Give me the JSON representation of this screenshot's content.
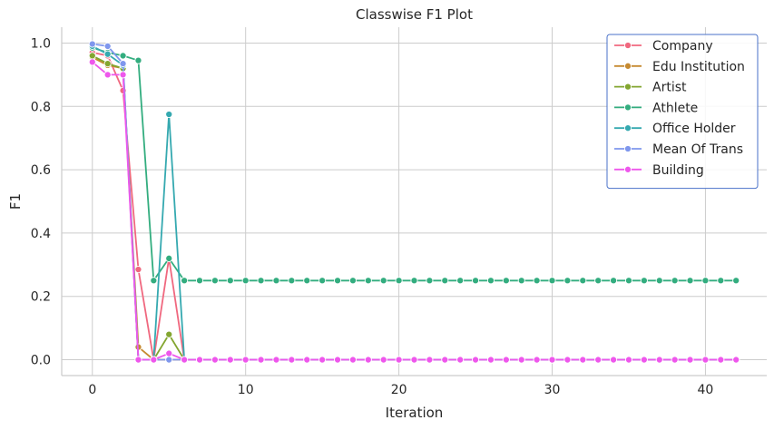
{
  "chart_data": {
    "type": "line",
    "title": "Classwise F1 Plot",
    "xlabel": "Iteration",
    "ylabel": "F1",
    "xlim": [
      -2,
      44
    ],
    "ylim": [
      -0.05,
      1.05
    ],
    "xticks": [
      0,
      10,
      20,
      30,
      40
    ],
    "yticks": [
      0.0,
      0.2,
      0.4,
      0.6,
      0.8,
      1.0
    ],
    "grid": true,
    "legend_position": "top-right",
    "x": [
      0,
      1,
      2,
      3,
      4,
      5,
      6,
      7,
      8,
      9,
      10,
      11,
      12,
      13,
      14,
      15,
      16,
      17,
      18,
      19,
      20,
      21,
      22,
      23,
      24,
      25,
      26,
      27,
      28,
      29,
      30,
      31,
      32,
      33,
      34,
      35,
      36,
      37,
      38,
      39,
      40,
      41,
      42
    ],
    "series": [
      {
        "name": "Company",
        "color": "#f0687f",
        "values": [
          0.97,
          0.96,
          0.85,
          0.285,
          0.0,
          0.32,
          0.0,
          0,
          0,
          0,
          0,
          0,
          0,
          0,
          0,
          0,
          0,
          0,
          0,
          0,
          0,
          0,
          0,
          0,
          0,
          0,
          0,
          0,
          0,
          0,
          0,
          0,
          0,
          0,
          0,
          0,
          0,
          0,
          0,
          0,
          0,
          0,
          0
        ]
      },
      {
        "name": "Edu Institution",
        "color": "#c68a31",
        "values": [
          0.955,
          0.93,
          0.92,
          0.04,
          0.0,
          0.0,
          0.0,
          0,
          0,
          0,
          0,
          0,
          0,
          0,
          0,
          0,
          0,
          0,
          0,
          0,
          0,
          0,
          0,
          0,
          0,
          0,
          0,
          0,
          0,
          0,
          0,
          0,
          0,
          0,
          0,
          0,
          0,
          0,
          0,
          0,
          0,
          0,
          0
        ]
      },
      {
        "name": "Artist",
        "color": "#83a630",
        "values": [
          0.96,
          0.935,
          0.92,
          0.0,
          0.0,
          0.08,
          0.0,
          0,
          0,
          0,
          0,
          0,
          0,
          0,
          0,
          0,
          0,
          0,
          0,
          0,
          0,
          0,
          0,
          0,
          0,
          0,
          0,
          0,
          0,
          0,
          0,
          0,
          0,
          0,
          0,
          0,
          0,
          0,
          0,
          0,
          0,
          0,
          0
        ]
      },
      {
        "name": "Athlete",
        "color": "#33ad7f",
        "values": [
          0.985,
          0.97,
          0.96,
          0.945,
          0.25,
          0.32,
          0.25,
          0.25,
          0.25,
          0.25,
          0.25,
          0.25,
          0.25,
          0.25,
          0.25,
          0.25,
          0.25,
          0.25,
          0.25,
          0.25,
          0.25,
          0.25,
          0.25,
          0.25,
          0.25,
          0.25,
          0.25,
          0.25,
          0.25,
          0.25,
          0.25,
          0.25,
          0.25,
          0.25,
          0.25,
          0.25,
          0.25,
          0.25,
          0.25,
          0.25,
          0.25,
          0.25,
          0.25
        ]
      },
      {
        "name": "Office Holder",
        "color": "#35a9b0",
        "values": [
          0.99,
          0.965,
          0.93,
          0.0,
          0.0,
          0.775,
          0.0,
          0,
          0,
          0,
          0,
          0,
          0,
          0,
          0,
          0,
          0,
          0,
          0,
          0,
          0,
          0,
          0,
          0,
          0,
          0,
          0,
          0,
          0,
          0,
          0,
          0,
          0,
          0,
          0,
          0,
          0,
          0,
          0,
          0,
          0,
          0,
          0
        ]
      },
      {
        "name": "Mean Of Trans",
        "color": "#7f97ed",
        "values": [
          0.997,
          0.99,
          0.935,
          0.0,
          0.0,
          0.0,
          0.0,
          0,
          0,
          0,
          0,
          0,
          0,
          0,
          0,
          0,
          0,
          0,
          0,
          0,
          0,
          0,
          0,
          0,
          0,
          0,
          0,
          0,
          0,
          0,
          0,
          0,
          0,
          0,
          0,
          0,
          0,
          0,
          0,
          0,
          0,
          0,
          0
        ]
      },
      {
        "name": "Building",
        "color": "#ee57ec",
        "values": [
          0.94,
          0.9,
          0.9,
          0.0,
          0.0,
          0.02,
          0.0,
          0,
          0,
          0,
          0,
          0,
          0,
          0,
          0,
          0,
          0,
          0,
          0,
          0,
          0,
          0,
          0,
          0,
          0,
          0,
          0,
          0,
          0,
          0,
          0,
          0,
          0,
          0,
          0,
          0,
          0,
          0,
          0,
          0,
          0,
          0,
          0
        ]
      }
    ]
  }
}
